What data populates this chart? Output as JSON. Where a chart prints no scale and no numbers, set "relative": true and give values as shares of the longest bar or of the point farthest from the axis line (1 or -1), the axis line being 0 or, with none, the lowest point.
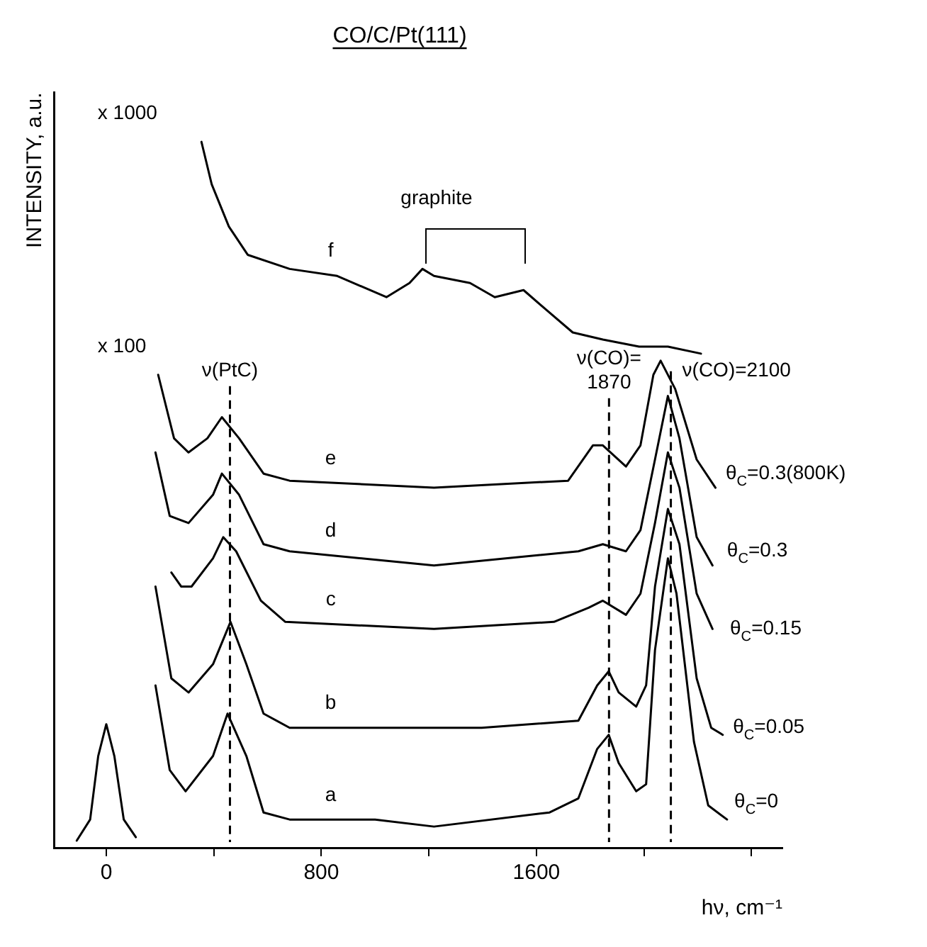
{
  "chart_data": {
    "type": "line",
    "title": "CO/C/Pt(111)",
    "xlabel": "hν, cm⁻¹",
    "ylabel": "INTENSITY, a.u.",
    "relative": true,
    "marker": "none",
    "line_style": "solid",
    "xlim": [
      -195,
      2515
    ],
    "xticks": [
      0,
      {
        "value": 400,
        "label": null
      },
      800,
      {
        "value": 1200,
        "label": null
      },
      1600,
      {
        "value": 2000,
        "label": null
      },
      {
        "value": 2400,
        "label": null
      }
    ],
    "series": [
      {
        "color": "#000000",
        "x": [
          -110,
          -60,
          -30,
          0,
          30,
          65,
          110
        ],
        "values": [
          0.01,
          0.04,
          0.13,
          0.175,
          0.13,
          0.04,
          0.015
        ]
      },
      {
        "name": "a",
        "color": "#000000",
        "x": [
          183,
          236,
          295,
          397,
          451,
          521,
          585,
          682,
          1000,
          1219,
          1649,
          1756,
          1826,
          1869,
          1906,
          1971,
          2008,
          2041,
          2089,
          2121,
          2186,
          2239,
          2309
        ],
        "values": [
          0.23,
          0.11,
          0.08,
          0.13,
          0.19,
          0.13,
          0.05,
          0.04,
          0.04,
          0.03,
          0.05,
          0.07,
          0.14,
          0.16,
          0.12,
          0.08,
          0.09,
          0.28,
          0.41,
          0.36,
          0.15,
          0.06,
          0.04
        ]
      },
      {
        "name": "b",
        "color": "#000000",
        "x": [
          183,
          242,
          306,
          397,
          462,
          521,
          585,
          682,
          1042,
          1396,
          1756,
          1826,
          1869,
          1906,
          1971,
          2008,
          2041,
          2089,
          2132,
          2196,
          2250,
          2293
        ],
        "values": [
          0.37,
          0.24,
          0.22,
          0.26,
          0.32,
          0.26,
          0.19,
          0.17,
          0.17,
          0.17,
          0.18,
          0.23,
          0.25,
          0.22,
          0.2,
          0.23,
          0.37,
          0.48,
          0.43,
          0.24,
          0.17,
          0.16
        ]
      },
      {
        "name": "c",
        "color": "#000000",
        "x": [
          242,
          279,
          317,
          397,
          435,
          483,
          575,
          666,
          1219,
          1665,
          1794,
          1847,
          1933,
          1987,
          2041,
          2089,
          2132,
          2196,
          2255
        ],
        "values": [
          0.39,
          0.37,
          0.37,
          0.41,
          0.44,
          0.42,
          0.35,
          0.32,
          0.31,
          0.32,
          0.34,
          0.35,
          0.33,
          0.36,
          0.46,
          0.56,
          0.51,
          0.36,
          0.31
        ]
      },
      {
        "name": "d",
        "color": "#000000",
        "x": [
          183,
          236,
          306,
          397,
          430,
          494,
          585,
          682,
          1219,
          1756,
          1847,
          1933,
          1987,
          2041,
          2089,
          2132,
          2196,
          2255
        ],
        "values": [
          0.56,
          0.47,
          0.46,
          0.5,
          0.53,
          0.5,
          0.43,
          0.42,
          0.4,
          0.42,
          0.43,
          0.42,
          0.45,
          0.55,
          0.64,
          0.58,
          0.44,
          0.4
        ]
      },
      {
        "name": "e",
        "color": "#000000",
        "x": [
          193,
          252,
          306,
          376,
          430,
          494,
          585,
          682,
          1219,
          1718,
          1810,
          1847,
          1933,
          1987,
          2035,
          2062,
          2116,
          2196,
          2266
        ],
        "values": [
          0.67,
          0.58,
          0.56,
          0.58,
          0.61,
          0.58,
          0.53,
          0.52,
          0.51,
          0.52,
          0.57,
          0.57,
          0.54,
          0.57,
          0.67,
          0.69,
          0.65,
          0.55,
          0.51
        ]
      },
      {
        "name": "f",
        "color": "#000000",
        "x": [
          354,
          392,
          456,
          526,
          682,
          859,
          1042,
          1128,
          1176,
          1219,
          1353,
          1445,
          1552,
          1643,
          1735,
          1847,
          1982,
          2089,
          2212
        ],
        "values": [
          1.0,
          0.94,
          0.88,
          0.84,
          0.82,
          0.81,
          0.78,
          0.8,
          0.82,
          0.81,
          0.8,
          0.78,
          0.79,
          0.76,
          0.73,
          0.72,
          0.71,
          0.71,
          0.7
        ]
      }
    ],
    "ref_lines": [
      {
        "axis": "x",
        "value": 460,
        "line_style": "dashed",
        "label": "ν(PtC)"
      },
      {
        "axis": "x",
        "value": 1870,
        "line_style": "dashed",
        "label": "ν(CO)=\n1870"
      },
      {
        "axis": "x",
        "value": 2100,
        "line_style": "dashed",
        "label": "ν(CO)=2100"
      }
    ],
    "annotations": [
      "x 1000",
      "x 100",
      "graphite",
      "θ$_{C}$=0.3(800K)",
      "θ$_{C}$=0.3",
      "θ$_{C}$=0.15",
      "θ$_{C}$=0.05",
      "θ$_{C}$=0"
    ]
  }
}
